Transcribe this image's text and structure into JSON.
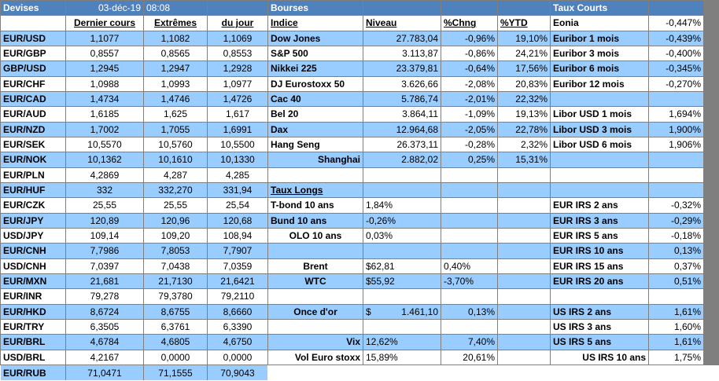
{
  "header": {
    "devises": "Devises",
    "date": "03-déc-19",
    "time": "08:08",
    "bourses": "Bourses",
    "taux_courts": "Taux Courts",
    "eonia_label": "Eonia",
    "eonia_value": "-0,447%"
  },
  "fx_columns": [
    "Dernier cours",
    "Extrêmes",
    "du jour"
  ],
  "index_columns": [
    "Indice",
    "Niveau",
    "%Chng",
    "%YTD"
  ],
  "fx_rows": [
    {
      "pair": "EUR/USD",
      "last": "1,1077",
      "high": "1,1082",
      "low": "1,1069"
    },
    {
      "pair": "EUR/GBP",
      "last": "0,8557",
      "high": "0,8565",
      "low": "0,8553"
    },
    {
      "pair": "GBP/USD",
      "last": "1,2945",
      "high": "1,2947",
      "low": "1,2928"
    },
    {
      "pair": "EUR/CHF",
      "last": "1,0988",
      "high": "1,0993",
      "low": "1,0977"
    },
    {
      "pair": "EUR/CAD",
      "last": "1,4734",
      "high": "1,4746",
      "low": "1,4726"
    },
    {
      "pair": "EUR/AUD",
      "last": "1,6185",
      "high": "1,625",
      "low": "1,617"
    },
    {
      "pair": "EUR/NZD",
      "last": "1,7002",
      "high": "1,7055",
      "low": "1,6991"
    },
    {
      "pair": "EUR/SEK",
      "last": "10,5570",
      "high": "10,5760",
      "low": "10,5500"
    },
    {
      "pair": "EUR/NOK",
      "last": "10,1362",
      "high": "10,1610",
      "low": "10,1330"
    },
    {
      "pair": "EUR/PLN",
      "last": "4,2869",
      "high": "4,287",
      "low": "4,285"
    },
    {
      "pair": "EUR/HUF",
      "last": "332",
      "high": "332,270",
      "low": "331,94"
    },
    {
      "pair": "EUR/CZK",
      "last": "25,55",
      "high": "25,55",
      "low": "25,54"
    },
    {
      "pair": "EUR/JPY",
      "last": "120,89",
      "high": "120,96",
      "low": "120,68"
    },
    {
      "pair": "USD/JPY",
      "last": "109,14",
      "high": "109,20",
      "low": "108,94"
    },
    {
      "pair": "EUR/CNH",
      "last": "7,7986",
      "high": "7,8053",
      "low": "7,7907"
    },
    {
      "pair": "USD/CNH",
      "last": "7,0397",
      "high": "7,0438",
      "low": "7,0359"
    },
    {
      "pair": "EUR/MXN",
      "last": "21,681",
      "high": "21,7130",
      "low": "21,6421"
    },
    {
      "pair": "EUR/INR",
      "last": "79,278",
      "high": "79,3780",
      "low": "79,2110"
    },
    {
      "pair": "EUR/HKD",
      "last": "8,6724",
      "high": "8,6755",
      "low": "8,6660"
    },
    {
      "pair": "EUR/TRY",
      "last": "6,3505",
      "high": "6,3761",
      "low": "6,3390"
    },
    {
      "pair": "EUR/BRL",
      "last": "4,6784",
      "high": "4,6805",
      "low": "4,6750"
    },
    {
      "pair": "USD/BRL",
      "last": "4,2167",
      "high": "0,0000",
      "low": "0,0000"
    },
    {
      "pair": "EUR/RUB",
      "last": "71,0471",
      "high": "71,1555",
      "low": "70,9043"
    }
  ],
  "indices": [
    {
      "name": "Dow Jones",
      "level": "27.783,04",
      "chng": "-0,96%",
      "ytd": "19,10%"
    },
    {
      "name": "S&P 500",
      "level": "3.113,87",
      "chng": "-0,86%",
      "ytd": "24,21%"
    },
    {
      "name": "Nikkei 225",
      "level": "23.379,81",
      "chng": "-0,64%",
      "ytd": "17,56%"
    },
    {
      "name": "DJ Eurostoxx 50",
      "level": "3.626,66",
      "chng": "-2,08%",
      "ytd": "20,83%"
    },
    {
      "name": "Cac 40",
      "level": "5.786,74",
      "chng": "-2,01%",
      "ytd": "22,32%"
    },
    {
      "name": "Bel 20",
      "level": "3.864,11",
      "chng": "-1,09%",
      "ytd": "19,13%"
    },
    {
      "name": "Dax",
      "level": "12.964,68",
      "chng": "-2,05%",
      "ytd": "22,78%"
    },
    {
      "name": "Hang Seng",
      "level": "26.373,11",
      "chng": "-0,28%",
      "ytd": "2,32%"
    },
    {
      "name": "Shanghai",
      "level": "2.882,02",
      "chng": "0,25%",
      "ytd": "15,31%"
    }
  ],
  "short_rates": [
    {
      "label": "Euribor 1 mois",
      "value": "-0,439%"
    },
    {
      "label": "Euribor 3 mois",
      "value": "-0,400%"
    },
    {
      "label": "Euribor 6 mois",
      "value": "-0,345%"
    },
    {
      "label": "Euribor 12 mois",
      "value": "-0,270%"
    },
    {
      "label": "Libor USD 1 mois",
      "value": "1,694%"
    },
    {
      "label": "Libor USD 3 mois",
      "value": "1,900%"
    },
    {
      "label": "Libor USD 6 mois",
      "value": "1,906%"
    }
  ],
  "long_rates_title": "Taux Longs",
  "long_rates": [
    {
      "label": "T-bond 10 ans",
      "value": "1,84%"
    },
    {
      "label": "Bund 10 ans",
      "value": "-0,26%"
    },
    {
      "label": "OLO 10 ans",
      "value": "0,03%"
    }
  ],
  "commodities": [
    {
      "label": "Brent",
      "value": "$62,81",
      "chng": "0,40%"
    },
    {
      "label": "WTC",
      "value": "$55,92",
      "chng": "-3,70%"
    },
    {
      "label": "Once d'or",
      "currency": "$",
      "value": "1.461,10",
      "chng": "0,13%"
    },
    {
      "label": "Vix",
      "value": "12,62%",
      "chng": "7,40%"
    },
    {
      "label": "Vol Euro stoxx",
      "value": "15,89%",
      "chng": "20,61%"
    }
  ],
  "irs": [
    {
      "label": "EUR IRS 2 ans",
      "value": "-0,32%"
    },
    {
      "label": "EUR IRS 3 ans",
      "value": "-0,29%"
    },
    {
      "label": "EUR IRS 5 ans",
      "value": "-0,18%"
    },
    {
      "label": "EUR IRS 10 ans",
      "value": "0,13%"
    },
    {
      "label": "EUR IRS 15 ans",
      "value": "0,37%"
    },
    {
      "label": "EUR IRS 20 ans",
      "value": "0,51%"
    },
    {
      "label": "US IRS 2 ans",
      "value": "1,61%"
    },
    {
      "label": "US IRS 3 ans",
      "value": "1,60%"
    },
    {
      "label": "US IRS 5 ans",
      "value": "1,61%"
    },
    {
      "label": "US IRS 10 ans",
      "value": "1,75%"
    }
  ],
  "colors": {
    "row_blue": "#99ccff",
    "header_blue": "#4f81bd",
    "grid_line": "#7f7f7f"
  }
}
